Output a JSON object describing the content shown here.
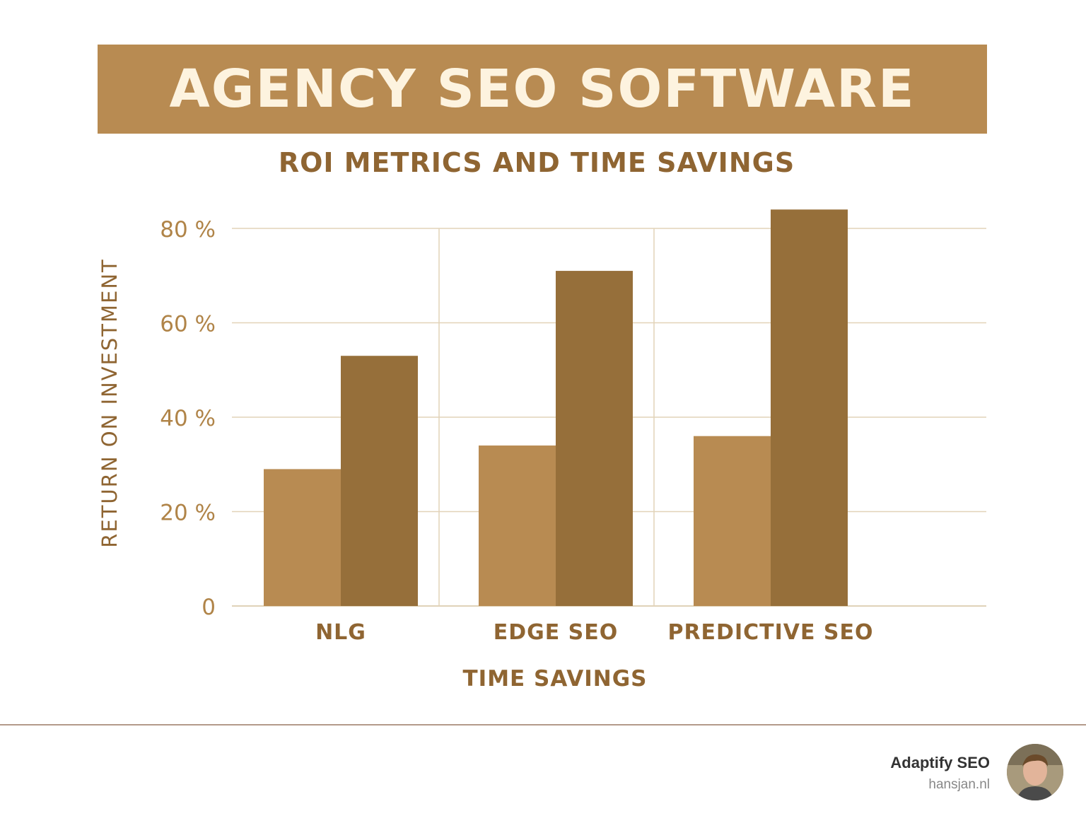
{
  "banner": {
    "title": "AGENCY SEO SOFTWARE"
  },
  "footer": {
    "brand": "Adaptify SEO",
    "site": "hansjan.nl"
  },
  "colors": {
    "banner": "#b88b52",
    "bar_light": "#b88b52",
    "bar_dark": "#966f3a",
    "text": "#8f6532",
    "grid": "#e2d3b8"
  },
  "chart_data": {
    "type": "bar",
    "title": "ROI METRICS AND TIME SAVINGS",
    "xlabel": "TIME SAVINGS",
    "ylabel": "RETURN ON INVESTMENT",
    "categories": [
      "NLG",
      "EDGE SEO",
      "PREDICTIVE SEO"
    ],
    "series": [
      {
        "values": [
          29,
          34,
          36
        ]
      },
      {
        "values": [
          53,
          71,
          84
        ]
      }
    ],
    "ylim": [
      0,
      80
    ],
    "yticks": [
      0,
      20,
      40,
      60,
      80
    ],
    "ytick_labels": [
      "0",
      "20 %",
      "40 %",
      "60 %",
      "80 %"
    ],
    "grid": true
  }
}
